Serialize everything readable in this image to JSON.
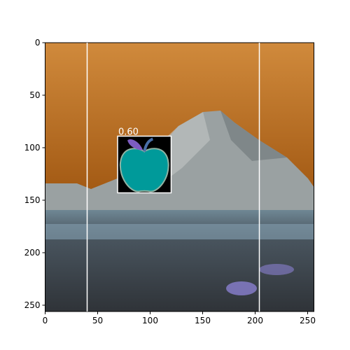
{
  "chart_data": {
    "type": "image",
    "xlim": [
      0,
      256
    ],
    "ylim": [
      256,
      0
    ],
    "xticks": [
      0,
      50,
      100,
      150,
      200,
      250
    ],
    "yticks": [
      0,
      50,
      100,
      150,
      200,
      250
    ],
    "vlines": [
      40,
      204
    ],
    "vline_color": "#ffffff",
    "boxes": [
      {
        "x": [
          69,
          120
        ],
        "y": [
          89,
          143
        ],
        "label": "0.60",
        "color": "#ffffff"
      }
    ]
  }
}
